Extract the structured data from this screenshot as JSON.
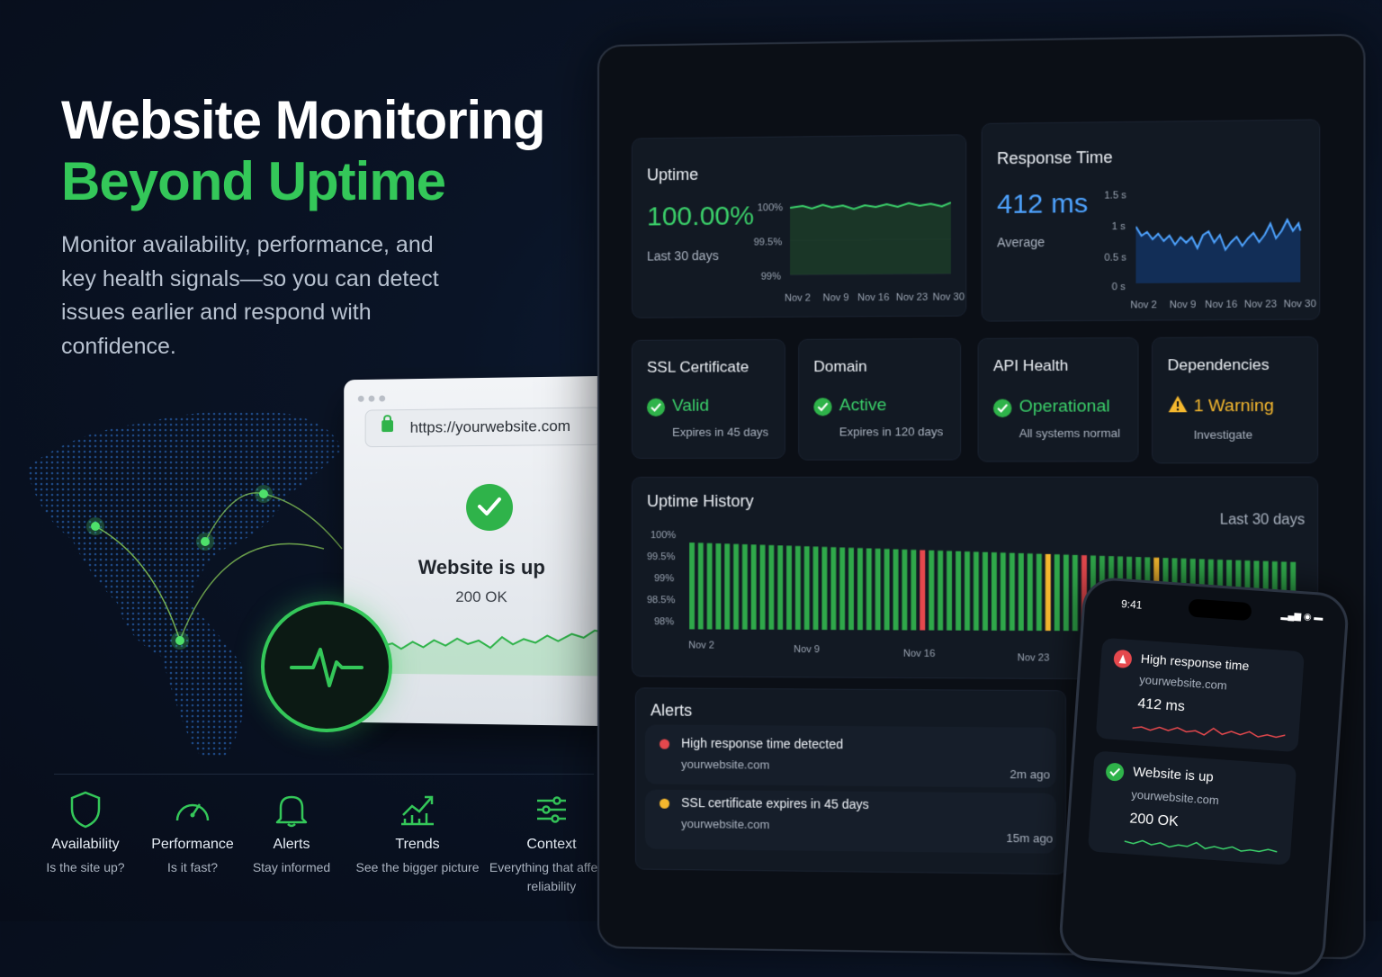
{
  "hero": {
    "title_line1": "Website Monitoring",
    "title_line2": "Beyond Uptime",
    "subtitle": "Monitor availability, performance, and key health signals—so you can detect issues earlier and respond with confidence."
  },
  "browser": {
    "url": "https://yourwebsite.com",
    "status_title": "Website is up",
    "status_code": "200 OK"
  },
  "features": [
    {
      "icon": "shield-icon",
      "title": "Availability",
      "desc": "Is the site up?"
    },
    {
      "icon": "speedometer-icon",
      "title": "Performance",
      "desc": "Is it fast?"
    },
    {
      "icon": "bell-icon",
      "title": "Alerts",
      "desc": "Stay informed"
    },
    {
      "icon": "trend-chart-icon",
      "title": "Trends",
      "desc": "See the bigger picture"
    },
    {
      "icon": "sliders-icon",
      "title": "Context",
      "desc": "Everything that affects reliability"
    }
  ],
  "dashboard": {
    "uptime": {
      "title": "Uptime",
      "value": "100.00%",
      "period": "Last 30 days",
      "y_ticks": [
        "100%",
        "99.5%",
        "99%"
      ],
      "x_ticks": [
        "Nov 2",
        "Nov 9",
        "Nov 16",
        "Nov 23",
        "Nov 30"
      ]
    },
    "response": {
      "title": "Response Time",
      "value": "412 ms",
      "label": "Average",
      "y_ticks": [
        "1.5 s",
        "1 s",
        "0.5 s",
        "0 s"
      ],
      "x_ticks": [
        "Nov 2",
        "Nov 9",
        "Nov 16",
        "Nov 23",
        "Nov 30"
      ]
    },
    "ssl": {
      "title": "SSL Certificate",
      "status": "Valid",
      "detail": "Expires in 45 days"
    },
    "domain": {
      "title": "Domain",
      "status": "Active",
      "detail": "Expires in 120 days"
    },
    "api": {
      "title": "API Health",
      "status": "Operational",
      "detail": "All systems normal"
    },
    "deps": {
      "title": "Dependencies",
      "status": "1 Warning",
      "detail": "Investigate"
    },
    "history": {
      "title": "Uptime History",
      "period": "Last 30 days",
      "y_ticks": [
        "100%",
        "99.5%",
        "99%",
        "98.5%",
        "98%"
      ],
      "x_ticks": [
        "Nov 2",
        "Nov 9",
        "Nov 16",
        "Nov 23"
      ]
    },
    "alerts": {
      "title": "Alerts",
      "items": [
        {
          "title": "High response time detected",
          "site": "yourwebsite.com",
          "time": "2m ago",
          "color": "#e5484d"
        },
        {
          "title": "SSL certificate expires in 45 days",
          "site": "yourwebsite.com",
          "time": "15m ago",
          "color": "#f5b82e"
        }
      ]
    }
  },
  "phone": {
    "time": "9:41",
    "card1": {
      "title": "High response time",
      "site": "yourwebsite.com",
      "value": "412 ms"
    },
    "card2": {
      "title": "Website is up",
      "site": "yourwebsite.com",
      "value": "200 OK"
    }
  },
  "colors": {
    "accent_green": "#34c759",
    "accent_blue": "#4ea3ff",
    "alert_red": "#e5484d",
    "warn_yellow": "#f5b82e"
  }
}
